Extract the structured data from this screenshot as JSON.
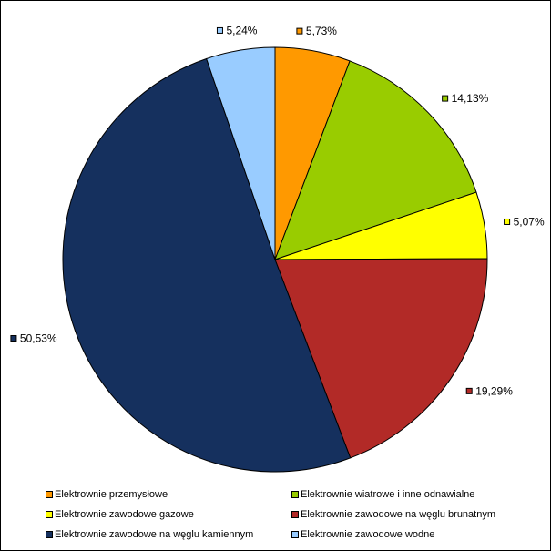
{
  "chart_data": {
    "type": "pie",
    "start_angle_deg": 0,
    "direction": "clockwise",
    "legend_position": "bottom",
    "slices": [
      {
        "name": "Elektrownie przemysłowe",
        "value": 5.73,
        "label": "5,73%",
        "color": "#ff9900"
      },
      {
        "name": "Elektrownie wiatrowe i inne odnawialne",
        "value": 14.13,
        "label": "14,13%",
        "color": "#99cc00"
      },
      {
        "name": "Elektrownie zawodowe gazowe",
        "value": 5.07,
        "label": "5,07%",
        "color": "#ffff00"
      },
      {
        "name": "Elektrownie zawodowe na węglu brunatnym",
        "value": 19.29,
        "label": "19,29%",
        "color": "#b22a27"
      },
      {
        "name": "Elektrownie zawodowe na węglu kamiennym",
        "value": 50.53,
        "label": "50,53%",
        "color": "#15305e"
      },
      {
        "name": "Elektrownie zawodowe wodne",
        "value": 5.24,
        "label": "5,24%",
        "color": "#99ccff"
      }
    ]
  }
}
